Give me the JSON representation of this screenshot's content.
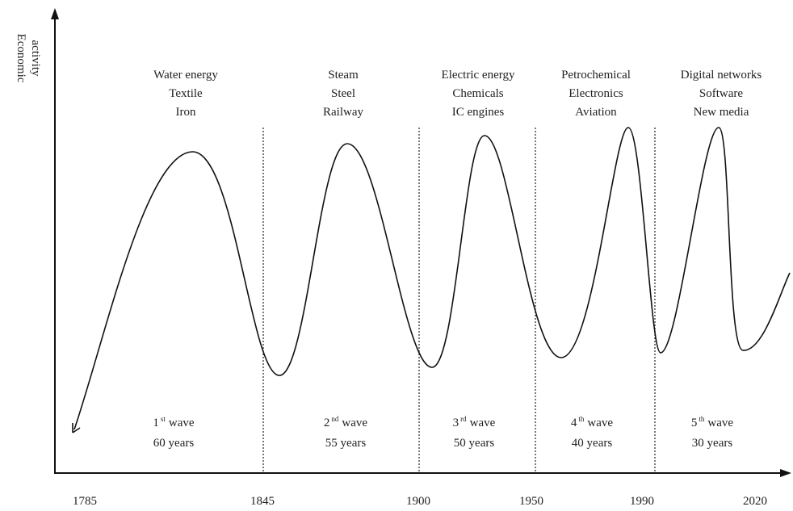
{
  "y_axis_label": [
    "Economic",
    "activity"
  ],
  "x_labels": [
    "1785",
    "1845",
    "1900",
    "1950",
    "1990",
    "2020"
  ],
  "waves": [
    {
      "technologies": [
        "Water energy",
        "Textile",
        "Iron"
      ],
      "ordinal": "1",
      "suffix": "st",
      "word": "wave",
      "duration": "60 years"
    },
    {
      "technologies": [
        "Steam",
        "Steel",
        "Railway"
      ],
      "ordinal": "2",
      "suffix": "nd",
      "word": "wave",
      "duration": "55 years"
    },
    {
      "technologies": [
        "Electric energy",
        "Chemicals",
        "IC engines"
      ],
      "ordinal": "3",
      "suffix": "rd",
      "word": "wave",
      "duration": "50 years"
    },
    {
      "technologies": [
        "Petrochemical",
        "Electronics",
        "Aviation"
      ],
      "ordinal": "4",
      "suffix": "th",
      "word": "wave",
      "duration": "40 years"
    },
    {
      "technologies": [
        "Digital networks",
        "Software",
        "New media"
      ],
      "ordinal": "5",
      "suffix": "th",
      "word": "wave",
      "duration": "30 years"
    }
  ]
}
